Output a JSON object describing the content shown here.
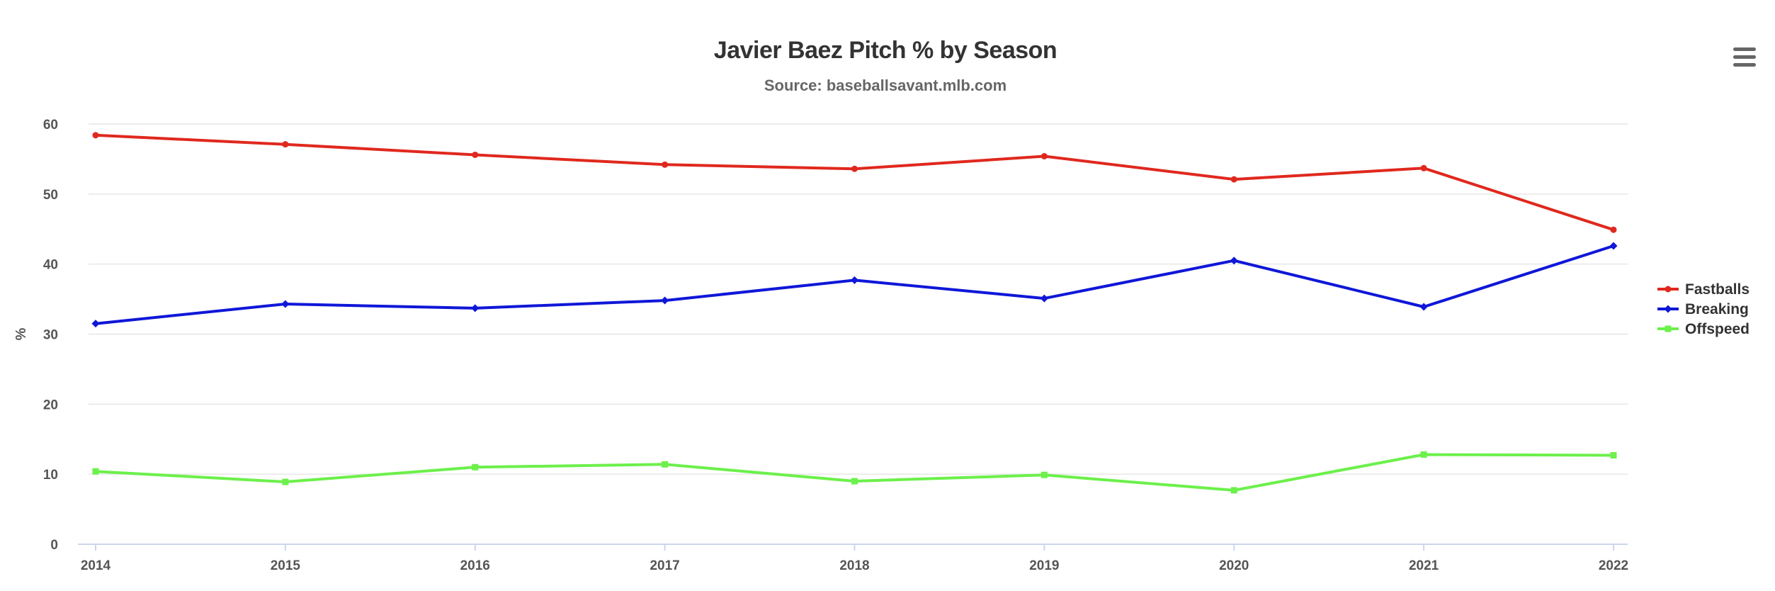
{
  "chart_data": {
    "type": "line",
    "title": "Javier Baez Pitch % by Season",
    "subtitle": "Source: baseballsavant.mlb.com",
    "ylabel": "%",
    "xlabel": "",
    "categories": [
      "2014",
      "2015",
      "2016",
      "2017",
      "2018",
      "2019",
      "2020",
      "2021",
      "2022"
    ],
    "ylim": [
      0,
      60
    ],
    "yticks": [
      0,
      10,
      20,
      30,
      40,
      50,
      60
    ],
    "grid": true,
    "legend_position": "right",
    "series": [
      {
        "name": "Fastballs",
        "color": "#e0281e",
        "marker": "circle",
        "values": [
          58.4,
          57.1,
          55.6,
          54.2,
          53.6,
          55.4,
          52.1,
          53.7,
          44.9
        ]
      },
      {
        "name": "Breaking",
        "color": "#0f17d8",
        "marker": "diamond",
        "values": [
          31.5,
          34.3,
          33.7,
          34.8,
          37.7,
          35.1,
          40.5,
          33.9,
          42.6
        ]
      },
      {
        "name": "Offspeed",
        "color": "#6cf04b",
        "marker": "square",
        "values": [
          10.4,
          8.9,
          11.0,
          11.4,
          9.0,
          9.9,
          7.7,
          12.8,
          12.7
        ]
      }
    ]
  },
  "menu": {
    "icon": "hamburger-menu-icon"
  }
}
